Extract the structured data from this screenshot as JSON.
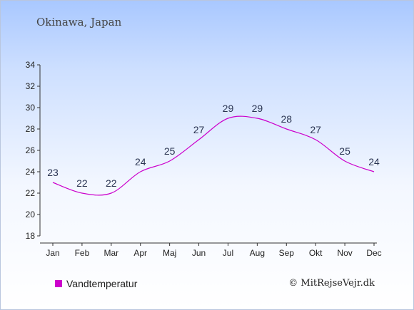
{
  "title": "Okinawa, Japan",
  "copyright": "© MitRejseVejr.dk",
  "chart_data": {
    "type": "line",
    "categories": [
      "Jan",
      "Feb",
      "Mar",
      "Apr",
      "Maj",
      "Jun",
      "Jul",
      "Aug",
      "Sep",
      "Okt",
      "Nov",
      "Dec"
    ],
    "series": [
      {
        "name": "Vandtemperatur",
        "values": [
          23,
          22,
          22,
          24,
          25,
          27,
          29,
          29,
          28,
          27,
          25,
          24
        ],
        "color": "#cc00cc"
      }
    ],
    "ylim": [
      18,
      34
    ],
    "yticks": [
      18,
      20,
      22,
      24,
      26,
      28,
      30,
      32,
      34
    ],
    "xlabel": "",
    "ylabel": "",
    "grid": false,
    "legend": "bottom-left"
  }
}
